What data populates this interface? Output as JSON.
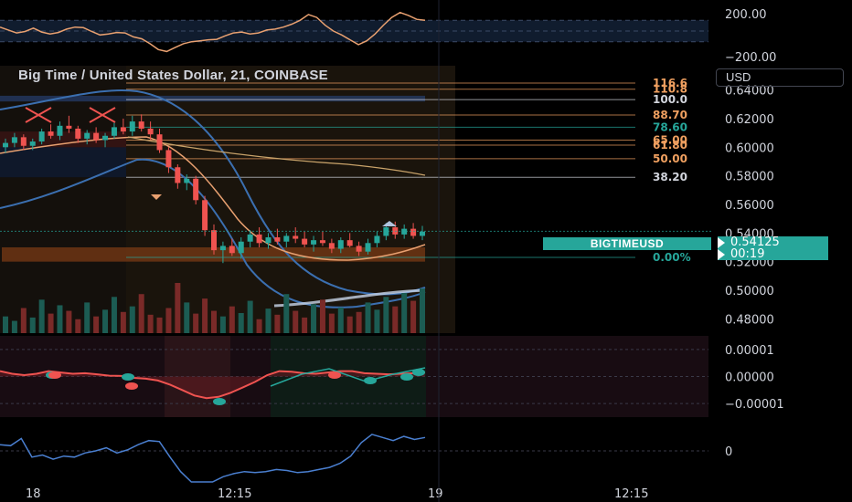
{
  "title": "Big Time / United States Dollar, 21, COINBASE",
  "currency_button": "USD",
  "symbol_tag": "BIGTIMEUSD",
  "last_price": "0.54125",
  "countdown": "00:19",
  "colors": {
    "up": "#26a69a",
    "down": "#ef5350",
    "accent": "#f0a060",
    "background": "#000000"
  },
  "chart_data": [
    {
      "type": "line",
      "title": "",
      "yticks": [
        "200.00",
        "−200.00"
      ],
      "ylim": [
        -300,
        300
      ],
      "series": [
        {
          "values": [
            40,
            10,
            -20,
            -5,
            30,
            -10,
            -30,
            -15,
            20,
            40,
            35,
            -5,
            -40,
            -30,
            -15,
            -20,
            -60,
            -80,
            -130,
            -190,
            -210,
            -170,
            -130,
            -110,
            -100,
            -90,
            -85,
            -50,
            -20,
            -10,
            -30,
            -20,
            10,
            20,
            40,
            70,
            110,
            170,
            140,
            60,
            0,
            -40,
            -90,
            -140,
            -100,
            -30,
            60,
            140,
            190,
            160,
            120,
            110
          ]
        }
      ]
    },
    {
      "type": "candlestick",
      "title": "Big Time / United States Dollar, 21, COINBASE",
      "yticks": [
        "0.64000",
        "0.62000",
        "0.60000",
        "0.58000",
        "0.56000",
        "0.54000",
        "0.52000",
        "0.50000",
        "0.48000"
      ],
      "ylim": [
        0.47,
        0.657
      ],
      "xticks": [
        "18",
        "12:15",
        "19",
        "12:15"
      ],
      "fib_levels": [
        {
          "label": "116.6",
          "value": 0.6449,
          "color": "#f0a060"
        },
        {
          "label": "110.8",
          "value": 0.6406,
          "color": "#f0a060"
        },
        {
          "label": "100.0",
          "value": 0.6333,
          "color": "#d1d4dc"
        },
        {
          "label": "88.70",
          "value": 0.6225,
          "color": "#f0a060"
        },
        {
          "label": "78.60",
          "value": 0.614,
          "color": "#26a69a"
        },
        {
          "label": "65.00",
          "value": 0.605,
          "color": "#f0a060"
        },
        {
          "label": "61.80",
          "value": 0.6015,
          "color": "#f0a060"
        },
        {
          "label": "50.00",
          "value": 0.592,
          "color": "#f0a060"
        },
        {
          "label": "38.20",
          "value": 0.579,
          "color": "#d1d4dc"
        },
        {
          "label": "0.00%",
          "value": 0.523,
          "color": "#26a69a"
        }
      ],
      "last_price": 0.54125,
      "candles": [
        [
          0.6,
          0.606,
          0.596,
          0.603
        ],
        [
          0.603,
          0.61,
          0.6,
          0.607
        ],
        [
          0.607,
          0.609,
          0.598,
          0.601
        ],
        [
          0.601,
          0.606,
          0.598,
          0.604
        ],
        [
          0.604,
          0.613,
          0.602,
          0.611
        ],
        [
          0.611,
          0.616,
          0.606,
          0.608
        ],
        [
          0.608,
          0.618,
          0.605,
          0.615
        ],
        [
          0.615,
          0.622,
          0.61,
          0.613
        ],
        [
          0.613,
          0.615,
          0.603,
          0.606
        ],
        [
          0.606,
          0.612,
          0.602,
          0.61
        ],
        [
          0.61,
          0.614,
          0.603,
          0.605
        ],
        [
          0.605,
          0.61,
          0.6,
          0.608
        ],
        [
          0.608,
          0.617,
          0.606,
          0.614
        ],
        [
          0.614,
          0.62,
          0.609,
          0.611
        ],
        [
          0.611,
          0.622,
          0.608,
          0.618
        ],
        [
          0.618,
          0.623,
          0.611,
          0.613
        ],
        [
          0.613,
          0.618,
          0.605,
          0.609
        ],
        [
          0.609,
          0.613,
          0.596,
          0.598
        ],
        [
          0.598,
          0.6,
          0.582,
          0.586
        ],
        [
          0.586,
          0.588,
          0.571,
          0.575
        ],
        [
          0.575,
          0.581,
          0.57,
          0.578
        ],
        [
          0.578,
          0.58,
          0.56,
          0.563
        ],
        [
          0.563,
          0.566,
          0.538,
          0.542
        ],
        [
          0.542,
          0.546,
          0.525,
          0.528
        ],
        [
          0.528,
          0.534,
          0.519,
          0.531
        ],
        [
          0.531,
          0.536,
          0.524,
          0.526
        ],
        [
          0.526,
          0.537,
          0.522,
          0.534
        ],
        [
          0.534,
          0.542,
          0.53,
          0.539
        ],
        [
          0.539,
          0.544,
          0.53,
          0.533
        ],
        [
          0.533,
          0.54,
          0.529,
          0.537
        ],
        [
          0.537,
          0.543,
          0.532,
          0.534
        ],
        [
          0.534,
          0.54,
          0.53,
          0.538
        ],
        [
          0.538,
          0.544,
          0.533,
          0.536
        ],
        [
          0.536,
          0.541,
          0.53,
          0.532
        ],
        [
          0.532,
          0.538,
          0.527,
          0.535
        ],
        [
          0.535,
          0.541,
          0.531,
          0.533
        ],
        [
          0.533,
          0.536,
          0.526,
          0.529
        ],
        [
          0.529,
          0.537,
          0.526,
          0.535
        ],
        [
          0.535,
          0.54,
          0.53,
          0.531
        ],
        [
          0.531,
          0.534,
          0.524,
          0.527
        ],
        [
          0.527,
          0.536,
          0.525,
          0.533
        ],
        [
          0.533,
          0.541,
          0.53,
          0.538
        ],
        [
          0.538,
          0.547,
          0.535,
          0.544
        ],
        [
          0.544,
          0.548,
          0.536,
          0.539
        ],
        [
          0.539,
          0.546,
          0.536,
          0.543
        ],
        [
          0.543,
          0.547,
          0.536,
          0.538
        ],
        [
          0.538,
          0.545,
          0.535,
          0.541
        ]
      ],
      "volumes": [
        30,
        22,
        45,
        28,
        60,
        35,
        50,
        40,
        25,
        55,
        30,
        42,
        65,
        38,
        48,
        70,
        33,
        28,
        45,
        90,
        55,
        35,
        62,
        40,
        30,
        48,
        36,
        58,
        25,
        44,
        33,
        70,
        40,
        28,
        52,
        60,
        35,
        46,
        30,
        38,
        55,
        42,
        65,
        48,
        72,
        58,
        80
      ],
      "indicators": [
        "moving-averages",
        "bollinger-bands",
        "fibonacci-retracement"
      ]
    },
    {
      "type": "area",
      "title": "",
      "yticks": [
        "0.00001",
        "0.00000",
        "−0.00001"
      ],
      "ylim": [
        -1.5e-05,
        1.5e-05
      ],
      "series": [
        {
          "values": [
            2e-06,
            1e-06,
            5e-07,
            1e-06,
            2e-06,
            1.5e-06,
            1e-06,
            1.2e-06,
            8e-07,
            3e-07,
            2e-07,
            -5e-07,
            -8e-07,
            -1.5e-06,
            -3e-06,
            -5e-06,
            -7e-06,
            -8e-06,
            -7.5e-06,
            -6e-06,
            -4e-06,
            -2e-06,
            5e-07,
            2e-06,
            1.8e-06,
            1.2e-06,
            1e-06,
            1.5e-06,
            2e-06,
            2e-06,
            1.2e-06,
            1e-06,
            8e-07,
            1e-06,
            1.2e-06,
            1.5e-06
          ]
        }
      ]
    },
    {
      "type": "line",
      "title": "",
      "yticks": [
        "0"
      ],
      "ylim": [
        -300,
        300
      ],
      "series": [
        {
          "values": [
            60,
            50,
            120,
            -60,
            -40,
            -80,
            -50,
            -60,
            -20,
            0,
            30,
            -20,
            10,
            60,
            100,
            90,
            -60,
            -200,
            -310,
            -330,
            -300,
            -250,
            -220,
            -200,
            -210,
            -200,
            -180,
            -190,
            -210,
            -200,
            -180,
            -160,
            -120,
            -50,
            80,
            160,
            130,
            100,
            140,
            110,
            130
          ]
        }
      ]
    }
  ]
}
